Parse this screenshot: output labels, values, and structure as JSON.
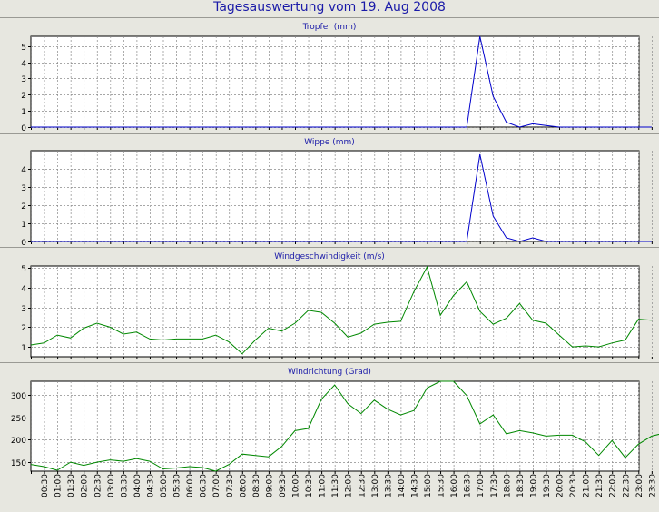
{
  "page": {
    "title": "Tagesauswertung vom 19. Aug 2008"
  },
  "colors": {
    "background": "#e7e7e0",
    "title": "#1a1aa8",
    "rain": "#0000cc",
    "wind": "#008800",
    "grid": "#8a8a8a"
  },
  "x_tick_labels": [
    "00:30",
    "01:00",
    "01:30",
    "02:00",
    "02:30",
    "03:00",
    "03:30",
    "04:00",
    "04:30",
    "05:00",
    "05:30",
    "06:00",
    "06:30",
    "07:00",
    "07:30",
    "08:00",
    "08:30",
    "09:00",
    "09:30",
    "10:00",
    "10:30",
    "11:00",
    "11:30",
    "12:00",
    "12:30",
    "13:00",
    "13:30",
    "14:00",
    "14:30",
    "15:00",
    "15:30",
    "16:00",
    "16:30",
    "17:00",
    "17:30",
    "18:00",
    "18:30",
    "19:00",
    "19:30",
    "20:00",
    "20:30",
    "21:00",
    "21:30",
    "22:00",
    "22:30",
    "23:00",
    "23:30"
  ],
  "chart_data": [
    {
      "type": "line",
      "title": "Tropfer (mm)",
      "ylim": [
        0,
        5.6
      ],
      "yticks": [
        0,
        1,
        2,
        3,
        4,
        5
      ],
      "grid": true,
      "x_start": "00:00",
      "x_step_minutes": 30,
      "series": [
        {
          "values": [
            0,
            0,
            0,
            0,
            0,
            0,
            0,
            0,
            0,
            0,
            0,
            0,
            0,
            0,
            0,
            0,
            0,
            0,
            0,
            0,
            0,
            0,
            0,
            0,
            0,
            0,
            0,
            0,
            0,
            0,
            0,
            0,
            0,
            0,
            5.6,
            1.9,
            0.3,
            0,
            0.2,
            0.1,
            0,
            0,
            0,
            0,
            0,
            0,
            0,
            0
          ]
        }
      ]
    },
    {
      "type": "line",
      "title": "Wippe (mm)",
      "ylim": [
        0,
        5.0
      ],
      "yticks": [
        0,
        1,
        2,
        3,
        4
      ],
      "grid": true,
      "x_start": "00:00",
      "x_step_minutes": 30,
      "series": [
        {
          "values": [
            0,
            0,
            0,
            0,
            0,
            0,
            0,
            0,
            0,
            0,
            0,
            0,
            0,
            0,
            0,
            0,
            0,
            0,
            0,
            0,
            0,
            0,
            0,
            0,
            0,
            0,
            0,
            0,
            0,
            0,
            0,
            0,
            0,
            0,
            4.8,
            1.4,
            0.2,
            0,
            0.2,
            0,
            0,
            0,
            0,
            0,
            0,
            0,
            0,
            0
          ]
        }
      ]
    },
    {
      "type": "line",
      "title": "Windgeschwindigkeit (m/s)",
      "ylim": [
        0.5,
        5.1
      ],
      "yticks": [
        1,
        2,
        3,
        4,
        5
      ],
      "grid": true,
      "x_start": "00:00",
      "x_step_minutes": 30,
      "series": [
        {
          "values": [
            1.1,
            1.2,
            1.6,
            1.45,
            1.95,
            2.2,
            2.0,
            1.65,
            1.75,
            1.4,
            1.35,
            1.4,
            1.4,
            1.4,
            1.6,
            1.25,
            0.65,
            1.35,
            1.95,
            1.8,
            2.2,
            2.85,
            2.75,
            2.2,
            1.5,
            1.7,
            2.15,
            2.25,
            2.3,
            3.8,
            5.05,
            2.6,
            3.6,
            4.3,
            2.8,
            2.15,
            2.45,
            3.2,
            2.35,
            2.2,
            1.6,
            1.0,
            1.05,
            1.0,
            1.2,
            1.35,
            2.4,
            2.35
          ]
        }
      ]
    },
    {
      "type": "line",
      "title": "Windrichtung (Grad)",
      "ylim": [
        130,
        330
      ],
      "yticks": [
        150,
        200,
        250,
        300
      ],
      "grid": true,
      "x_start": "00:00",
      "x_step_minutes": 30,
      "series": [
        {
          "values": [
            145,
            140,
            132,
            150,
            143,
            150,
            155,
            152,
            158,
            152,
            135,
            137,
            140,
            138,
            130,
            145,
            168,
            165,
            162,
            185,
            220,
            225,
            290,
            322,
            280,
            258,
            288,
            268,
            255,
            265,
            315,
            330,
            330,
            298,
            235,
            255,
            213,
            220,
            215,
            208,
            210,
            210,
            195,
            165,
            198,
            160,
            190,
            208,
            215
          ]
        }
      ]
    }
  ]
}
